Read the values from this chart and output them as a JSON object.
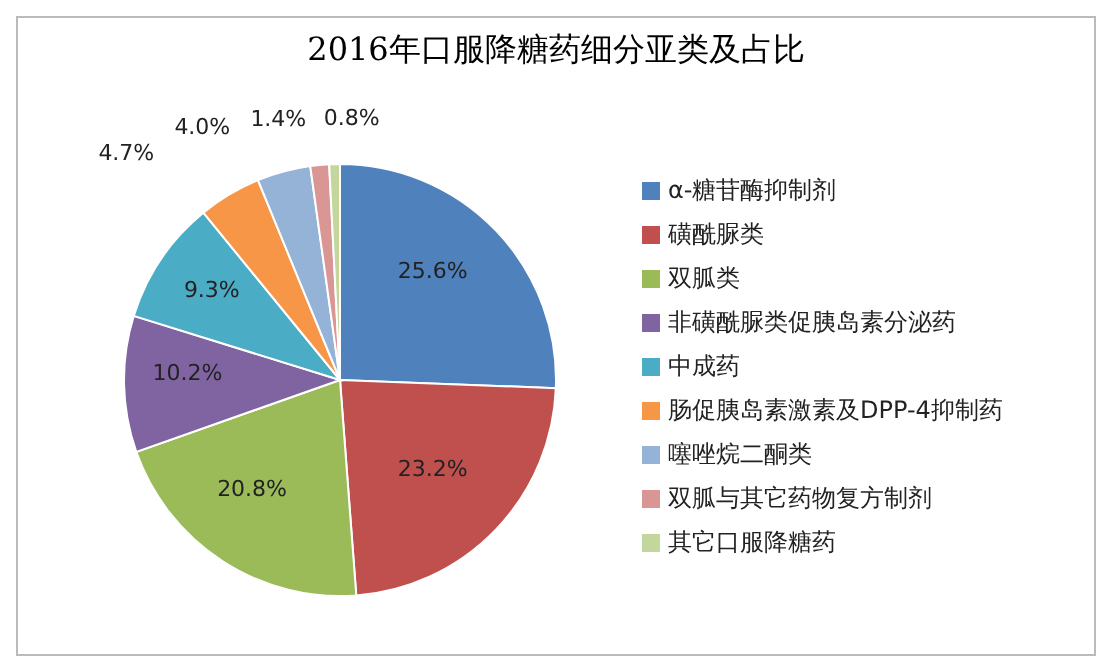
{
  "chart_data": {
    "type": "pie",
    "title": "2016年口服降糖药细分亚类及占比",
    "categories": [
      "α-糖苷酶抑制剂",
      "磺酰脲类",
      "双胍类",
      "非磺酰脲类促胰岛素分泌药",
      "中成药",
      "肠促胰岛素激素及DPP-4抑制药",
      "噻唑烷二酮类",
      "双胍与其它药物复方制剂",
      "其它口服降糖药"
    ],
    "values": [
      25.6,
      23.2,
      20.8,
      10.2,
      9.3,
      4.7,
      4.0,
      1.4,
      0.8
    ],
    "value_labels": [
      "25.6%",
      "23.2%",
      "20.8%",
      "10.2%",
      "9.3%",
      "4.7%",
      "4.0%",
      "1.4%",
      "0.8%"
    ],
    "colors": [
      "#4f81bd",
      "#c0504d",
      "#9bbb59",
      "#8064a2",
      "#4bacc6",
      "#f79646",
      "#95b3d7",
      "#d99694",
      "#c3d69b"
    ],
    "legend": "right"
  }
}
